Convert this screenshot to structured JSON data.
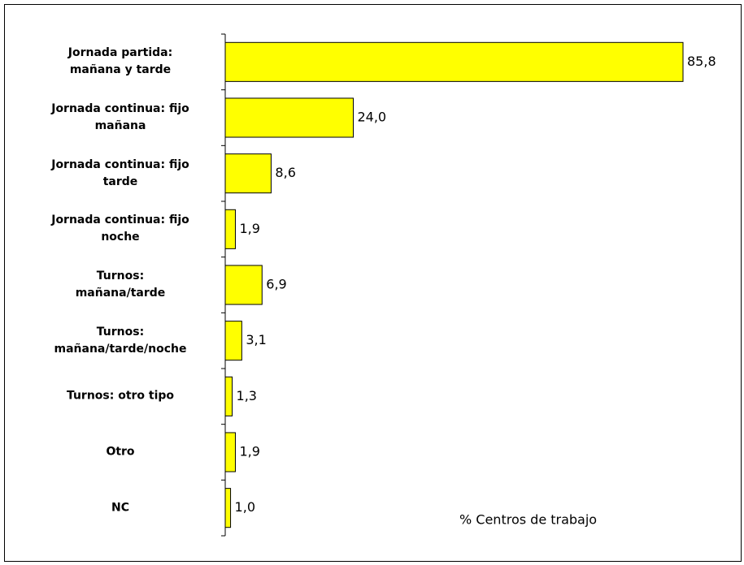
{
  "chart_data": {
    "type": "barh",
    "categories": [
      "Jornada partida:\nmañana y tarde",
      "Jornada continua: fijo\nmañana",
      "Jornada continua: fijo\ntarde",
      "Jornada continua: fijo\nnoche",
      "Turnos:\nmañana/tarde",
      "Turnos:\nmañana/tarde/noche",
      "Turnos: otro tipo",
      "Otro",
      "NC"
    ],
    "values": [
      85.8,
      24.0,
      8.6,
      1.9,
      6.9,
      3.1,
      1.3,
      1.9,
      1.0
    ],
    "value_labels": [
      "85,8",
      "24,0",
      "8,6",
      "1,9",
      "6,9",
      "3,1",
      "1,3",
      "1,9",
      "1,0"
    ],
    "color": "#ffff00",
    "x_label": "% Centros de trabajo"
  }
}
